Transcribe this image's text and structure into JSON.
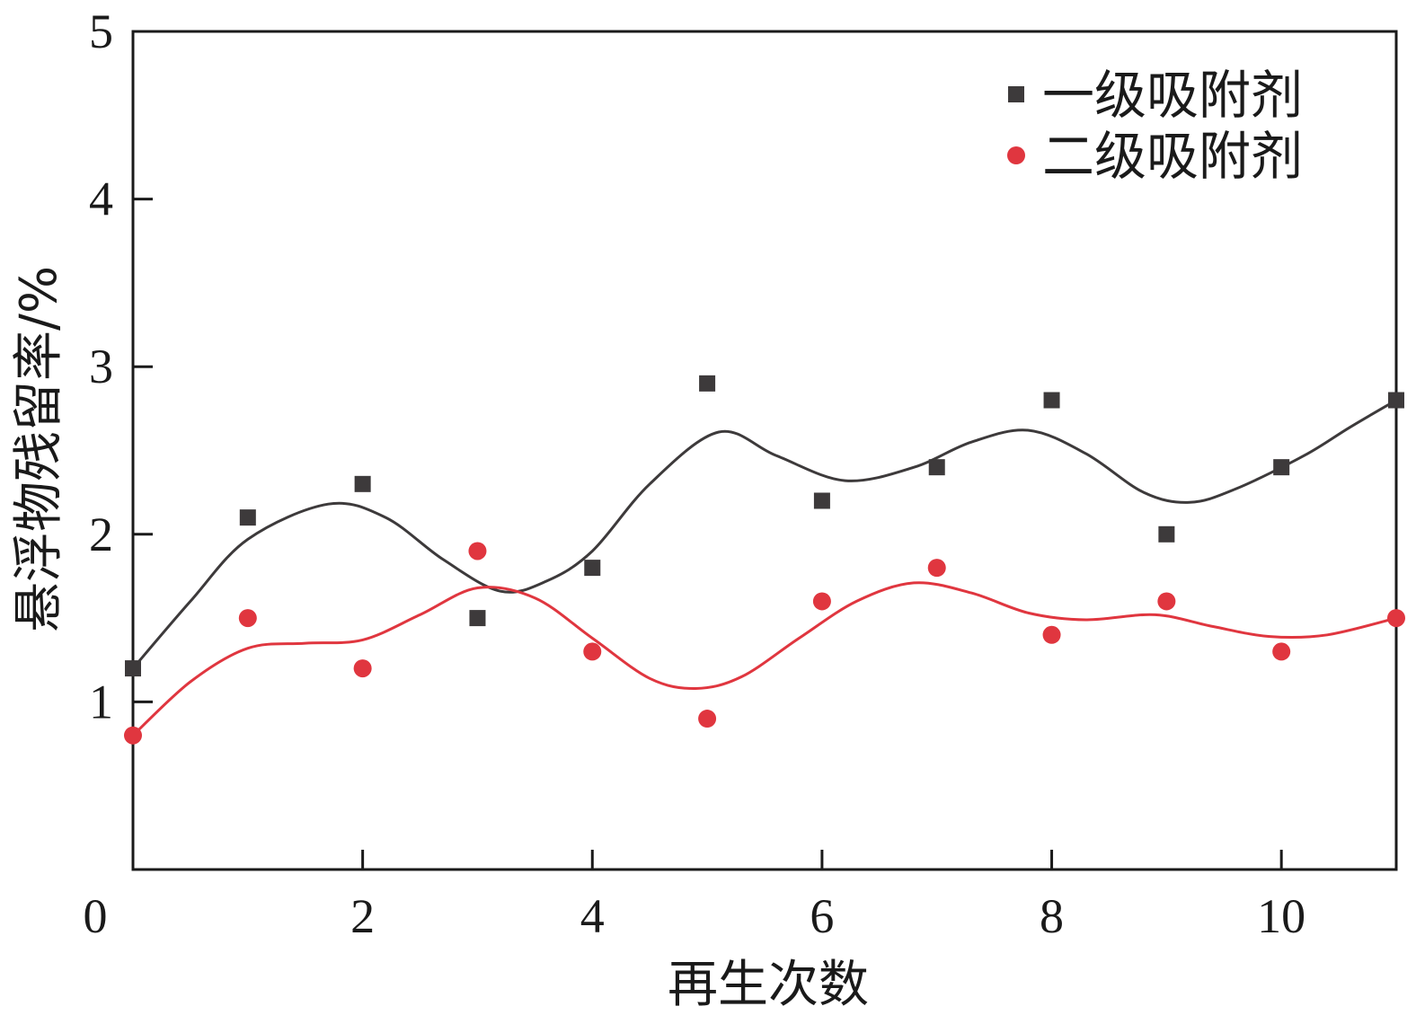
{
  "chart_data": {
    "type": "scatter",
    "xlabel": "再生次数",
    "ylabel": "悬浮物残留率/%",
    "xlim": [
      0,
      11
    ],
    "ylim": [
      0,
      5
    ],
    "xticks": [
      0,
      2,
      4,
      6,
      8,
      10
    ],
    "yticks": [
      1,
      2,
      3,
      4,
      5
    ],
    "x_tick_labels": [
      "0",
      "2",
      "4",
      "6",
      "8",
      "10"
    ],
    "y_tick_labels": [
      "1",
      "2",
      "3",
      "4",
      "5"
    ],
    "grid": false,
    "legend_position": "top-right",
    "x": [
      0,
      1,
      2,
      3,
      4,
      5,
      6,
      7,
      8,
      9,
      10,
      11
    ],
    "series": [
      {
        "name": "一级吸附剂",
        "marker": "square",
        "color": "#3d3a3b",
        "values": [
          1.2,
          2.1,
          2.3,
          1.5,
          1.8,
          2.9,
          2.2,
          2.4,
          2.8,
          2.0,
          2.4,
          2.8
        ],
        "fit_curve": [
          [
            0,
            1.2
          ],
          [
            0.5,
            1.6
          ],
          [
            1,
            1.97
          ],
          [
            1.7,
            2.18
          ],
          [
            2.2,
            2.1
          ],
          [
            2.7,
            1.85
          ],
          [
            3.2,
            1.66
          ],
          [
            3.6,
            1.72
          ],
          [
            4,
            1.9
          ],
          [
            4.5,
            2.3
          ],
          [
            5.1,
            2.61
          ],
          [
            5.6,
            2.47
          ],
          [
            6.2,
            2.32
          ],
          [
            6.8,
            2.4
          ],
          [
            7.3,
            2.55
          ],
          [
            7.8,
            2.62
          ],
          [
            8.3,
            2.48
          ],
          [
            8.8,
            2.25
          ],
          [
            9.2,
            2.19
          ],
          [
            9.6,
            2.27
          ],
          [
            10.2,
            2.47
          ],
          [
            10.6,
            2.64
          ],
          [
            11,
            2.8
          ]
        ]
      },
      {
        "name": "二级吸附剂",
        "marker": "circle",
        "color": "#e0363f",
        "values": [
          0.8,
          1.5,
          1.2,
          1.9,
          1.3,
          0.9,
          1.6,
          1.8,
          1.4,
          1.6,
          1.3,
          1.5
        ],
        "fit_curve": [
          [
            0,
            0.8
          ],
          [
            0.5,
            1.12
          ],
          [
            1,
            1.32
          ],
          [
            1.5,
            1.35
          ],
          [
            2,
            1.37
          ],
          [
            2.5,
            1.52
          ],
          [
            3,
            1.68
          ],
          [
            3.5,
            1.62
          ],
          [
            4,
            1.38
          ],
          [
            4.5,
            1.14
          ],
          [
            4.9,
            1.08
          ],
          [
            5.3,
            1.15
          ],
          [
            5.8,
            1.38
          ],
          [
            6.3,
            1.6
          ],
          [
            6.8,
            1.71
          ],
          [
            7.3,
            1.65
          ],
          [
            7.8,
            1.53
          ],
          [
            8.3,
            1.49
          ],
          [
            8.9,
            1.52
          ],
          [
            9.4,
            1.45
          ],
          [
            9.9,
            1.39
          ],
          [
            10.4,
            1.4
          ],
          [
            11,
            1.5
          ]
        ]
      }
    ]
  }
}
